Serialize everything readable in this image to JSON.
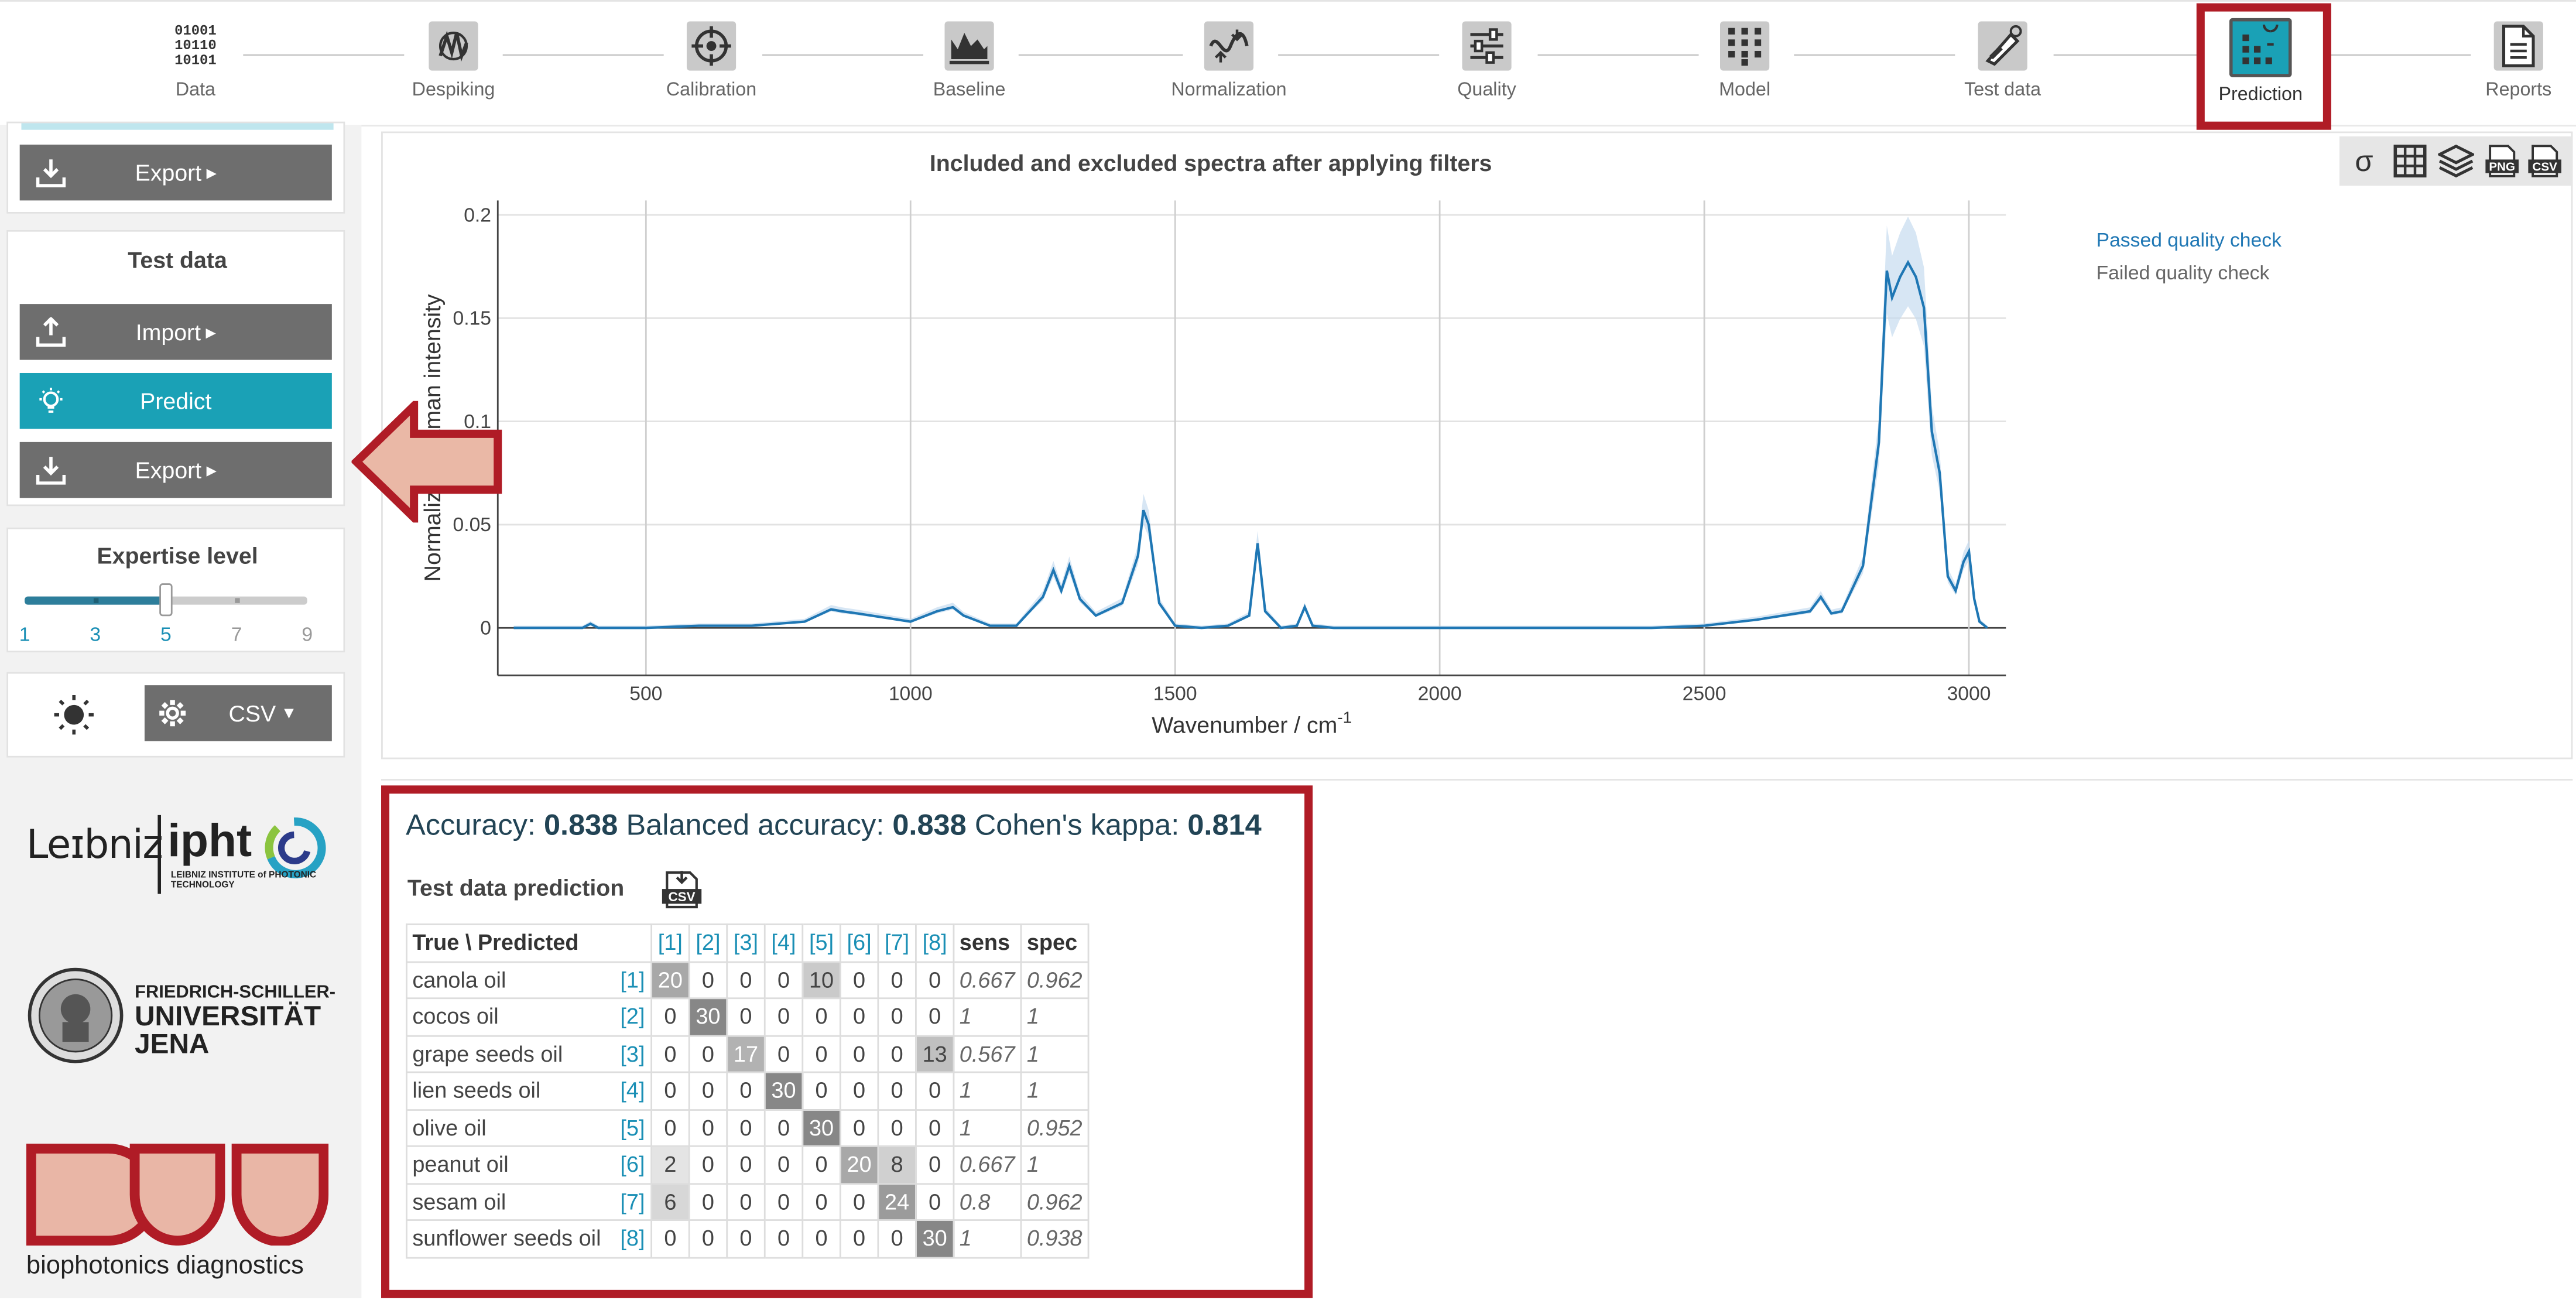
{
  "workflow": {
    "steps": [
      {
        "label": "Data",
        "icon": "binary-data-icon"
      },
      {
        "label": "Despiking",
        "icon": "despiking-icon"
      },
      {
        "label": "Calibration",
        "icon": "crosshair-icon"
      },
      {
        "label": "Baseline",
        "icon": "baseline-icon"
      },
      {
        "label": "Normalization",
        "icon": "normalization-icon"
      },
      {
        "label": "Quality",
        "icon": "sliders-icon"
      },
      {
        "label": "Model",
        "icon": "grid-dots-icon"
      },
      {
        "label": "Test data",
        "icon": "test-tube-icon"
      },
      {
        "label": "Prediction",
        "icon": "prediction-icon"
      },
      {
        "label": "Reports",
        "icon": "document-icon"
      }
    ],
    "active": "Prediction"
  },
  "sidebar": {
    "model_export_label": "Export",
    "test_data": {
      "title": "Test data",
      "import_label": "Import",
      "predict_label": "Predict",
      "export_label": "Export"
    },
    "expertise": {
      "title": "Expertise level",
      "ticks": [
        "1",
        "3",
        "5",
        "7",
        "9"
      ],
      "value": 5
    },
    "format_label": "CSV",
    "logos": {
      "leibniz": "Leibniz ipht",
      "leibniz_sub": "LEIBNIZ INSTITUTE of PHOTONIC TECHNOLOGY",
      "fsu_line1": "FRIEDRICH-SCHILLER-",
      "fsu_line2": "UNIVERSITÄT",
      "fsu_line3": "JENA",
      "bd": "biophotonics diagnostics"
    }
  },
  "chart_toolbar": [
    "sigma-icon",
    "table-icon",
    "layers-icon",
    "png-export-icon",
    "csv-export-icon"
  ],
  "chart_toolbar_labels": {
    "png": "PNG",
    "csv": "CSV"
  },
  "chart_data": {
    "type": "line",
    "title": "Included and excluded spectra after applying filters",
    "xlabel": "Wavenumber / cm-1",
    "ylabel": "Normalized Raman intensity",
    "xlim": [
      220,
      3070
    ],
    "ylim": [
      -0.023,
      0.207
    ],
    "xticks": [
      500,
      1000,
      1500,
      2000,
      2500,
      3000
    ],
    "yticks": [
      0,
      0.05,
      0.1,
      0.15,
      0.2
    ],
    "ytick_labels": [
      "0",
      "0.05",
      "0.1",
      "0.15",
      "0.2"
    ],
    "grid": true,
    "legend_position": "top-right",
    "series": [
      {
        "name": "Passed quality check",
        "color": "#1f77b4",
        "x": [
          250,
          300,
          380,
          395,
          410,
          500,
          600,
          700,
          800,
          850,
          870,
          900,
          950,
          1000,
          1050,
          1080,
          1100,
          1150,
          1200,
          1250,
          1270,
          1285,
          1300,
          1320,
          1350,
          1400,
          1430,
          1440,
          1450,
          1470,
          1500,
          1550,
          1600,
          1640,
          1656,
          1670,
          1700,
          1730,
          1745,
          1760,
          1800,
          1900,
          2000,
          2100,
          2200,
          2300,
          2400,
          2500,
          2600,
          2700,
          2720,
          2740,
          2760,
          2800,
          2830,
          2845,
          2855,
          2870,
          2885,
          2900,
          2915,
          2930,
          2945,
          2960,
          2975,
          2990,
          3000,
          3010,
          3020,
          3035
        ],
        "y": [
          0,
          0,
          0,
          0.002,
          0,
          0,
          0.001,
          0.001,
          0.003,
          0.009,
          0.008,
          0.007,
          0.005,
          0.003,
          0.008,
          0.01,
          0.006,
          0.001,
          0.001,
          0.015,
          0.028,
          0.018,
          0.03,
          0.014,
          0.006,
          0.012,
          0.035,
          0.057,
          0.05,
          0.012,
          0.001,
          0,
          0.001,
          0.006,
          0.041,
          0.008,
          0,
          0.001,
          0.01,
          0.001,
          0,
          0,
          0,
          0,
          0,
          0,
          0,
          0.001,
          0.004,
          0.008,
          0.015,
          0.007,
          0.008,
          0.03,
          0.09,
          0.173,
          0.16,
          0.17,
          0.177,
          0.17,
          0.155,
          0.095,
          0.075,
          0.025,
          0.018,
          0.032,
          0.037,
          0.014,
          0.003,
          0
        ]
      },
      {
        "name": "Failed quality check",
        "color": "#666666",
        "x": [],
        "y": []
      }
    ]
  },
  "results": {
    "accuracy_label": "Accuracy:",
    "accuracy": "0.838",
    "balanced_label": "Balanced accuracy:",
    "balanced": "0.838",
    "kappa_label": "Cohen's kappa:",
    "kappa": "0.814",
    "table_title": "Test data prediction",
    "csv_label": "CSV",
    "header_true_pred": "True \\ Predicted",
    "col_indices": [
      "[1]",
      "[2]",
      "[3]",
      "[4]",
      "[5]",
      "[6]",
      "[7]",
      "[8]"
    ],
    "sens_label": "sens",
    "spec_label": "spec",
    "rows": [
      {
        "name": "canola oil",
        "idx": "[1]",
        "cells": [
          "20",
          "0",
          "0",
          "0",
          "10",
          "0",
          "0",
          "0"
        ],
        "sens": "0.667",
        "spec": "0.962"
      },
      {
        "name": "cocos oil",
        "idx": "[2]",
        "cells": [
          "0",
          "30",
          "0",
          "0",
          "0",
          "0",
          "0",
          "0"
        ],
        "sens": "1",
        "spec": "1"
      },
      {
        "name": "grape seeds oil",
        "idx": "[3]",
        "cells": [
          "0",
          "0",
          "17",
          "0",
          "0",
          "0",
          "0",
          "13"
        ],
        "sens": "0.567",
        "spec": "1"
      },
      {
        "name": "lien seeds oil",
        "idx": "[4]",
        "cells": [
          "0",
          "0",
          "0",
          "30",
          "0",
          "0",
          "0",
          "0"
        ],
        "sens": "1",
        "spec": "1"
      },
      {
        "name": "olive oil",
        "idx": "[5]",
        "cells": [
          "0",
          "0",
          "0",
          "0",
          "30",
          "0",
          "0",
          "0"
        ],
        "sens": "1",
        "spec": "0.952"
      },
      {
        "name": "peanut oil",
        "idx": "[6]",
        "cells": [
          "2",
          "0",
          "0",
          "0",
          "0",
          "20",
          "8",
          "0"
        ],
        "sens": "0.667",
        "spec": "1"
      },
      {
        "name": "sesam oil",
        "idx": "[7]",
        "cells": [
          "6",
          "0",
          "0",
          "0",
          "0",
          "0",
          "24",
          "0"
        ],
        "sens": "0.8",
        "spec": "0.962"
      },
      {
        "name": "sunflower seeds oil",
        "idx": "[8]",
        "cells": [
          "0",
          "0",
          "0",
          "0",
          "0",
          "0",
          "0",
          "30"
        ],
        "sens": "1",
        "spec": "0.938"
      }
    ]
  }
}
